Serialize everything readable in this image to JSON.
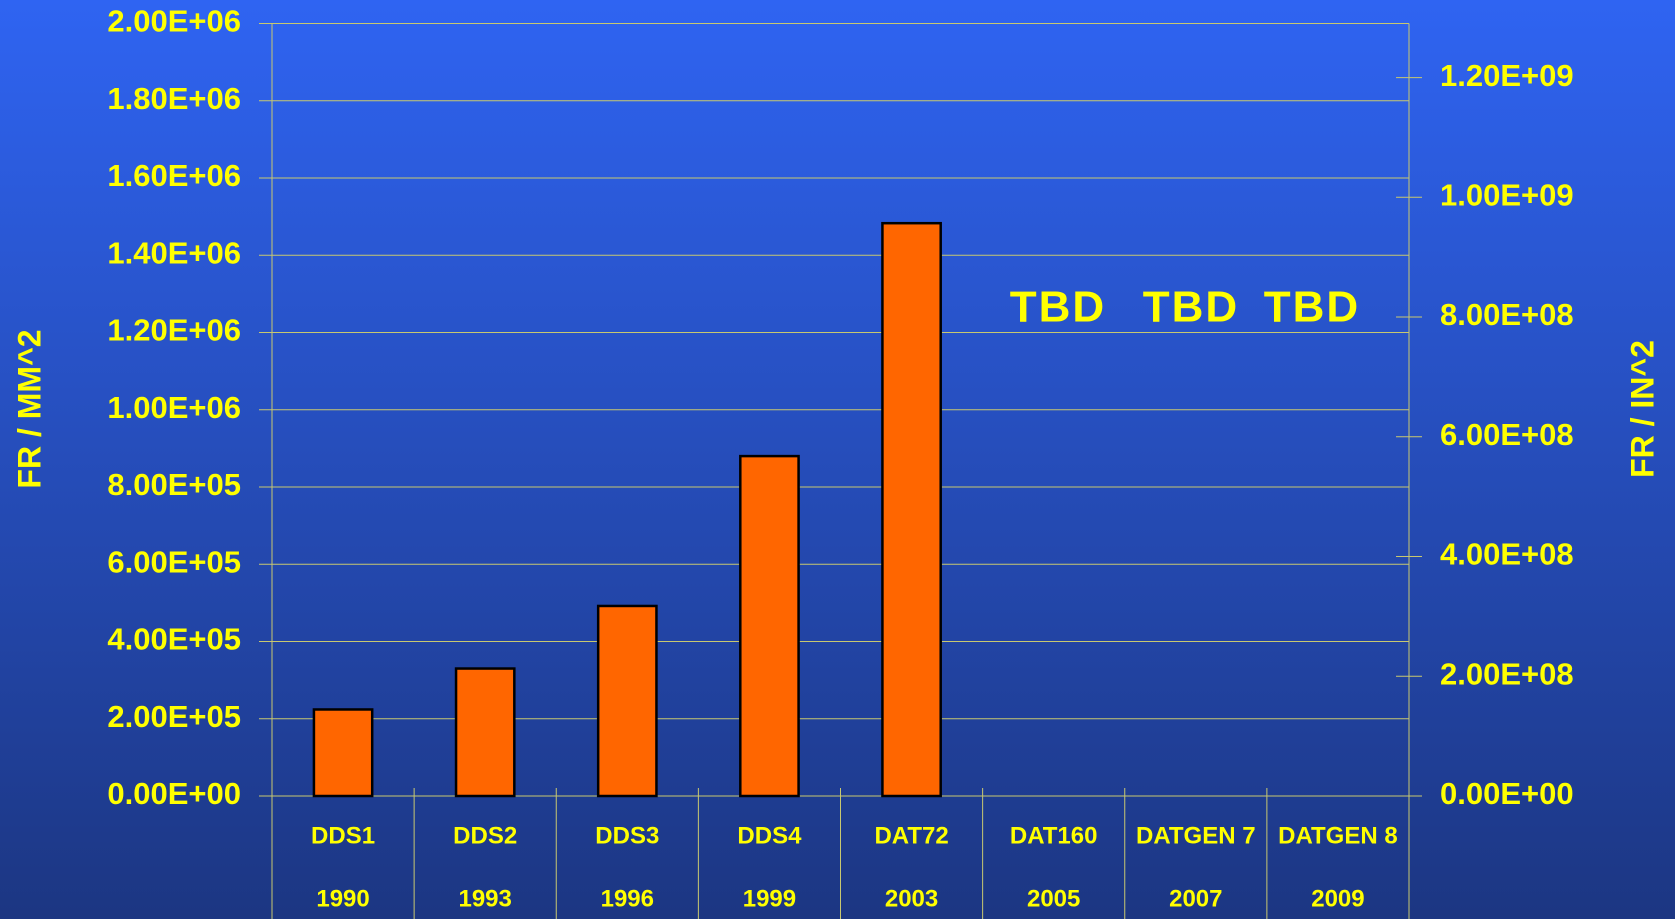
{
  "chart_data": {
    "type": "bar",
    "categories": [
      "DDS1",
      "DDS2",
      "DDS3",
      "DDS4",
      "DAT72",
      "DAT160",
      "DATGEN 7",
      "DATGEN 8"
    ],
    "category_years": [
      "1990",
      "1993",
      "1996",
      "1999",
      "2003",
      "2005",
      "2007",
      "2009"
    ],
    "values": [
      224000,
      330000,
      492000,
      880000,
      1483000,
      null,
      null,
      null
    ],
    "color": "#ff6600",
    "ylabel": "FR / MM^2",
    "y2label": "FR / IN^2",
    "ylim": [
      0,
      2000000
    ],
    "yticks": [
      {
        "value": 0,
        "label": "0.00E+00"
      },
      {
        "value": 200000,
        "label": "2.00E+05"
      },
      {
        "value": 400000,
        "label": "4.00E+05"
      },
      {
        "value": 600000,
        "label": "6.00E+05"
      },
      {
        "value": 800000,
        "label": "8.00E+05"
      },
      {
        "value": 1000000,
        "label": "1.00E+06"
      },
      {
        "value": 1200000,
        "label": "1.20E+06"
      },
      {
        "value": 1400000,
        "label": "1.40E+06"
      },
      {
        "value": 1600000,
        "label": "1.60E+06"
      },
      {
        "value": 1800000,
        "label": "1.80E+06"
      },
      {
        "value": 2000000,
        "label": "2.00E+06"
      }
    ],
    "y2lim": [
      0,
      1290320000
    ],
    "y2ticks": [
      {
        "value": 0,
        "label": "0.00E+00"
      },
      {
        "value": 200000000,
        "label": "2.00E+08"
      },
      {
        "value": 400000000,
        "label": "4.00E+08"
      },
      {
        "value": 600000000,
        "label": "6.00E+08"
      },
      {
        "value": 800000000,
        "label": "8.00E+08"
      },
      {
        "value": 1000000000,
        "label": "1.00E+09"
      },
      {
        "value": 1200000000,
        "label": "1.20E+09"
      }
    ],
    "annotations": [
      "TBD",
      "TBD",
      "TBD"
    ],
    "grid": true
  }
}
